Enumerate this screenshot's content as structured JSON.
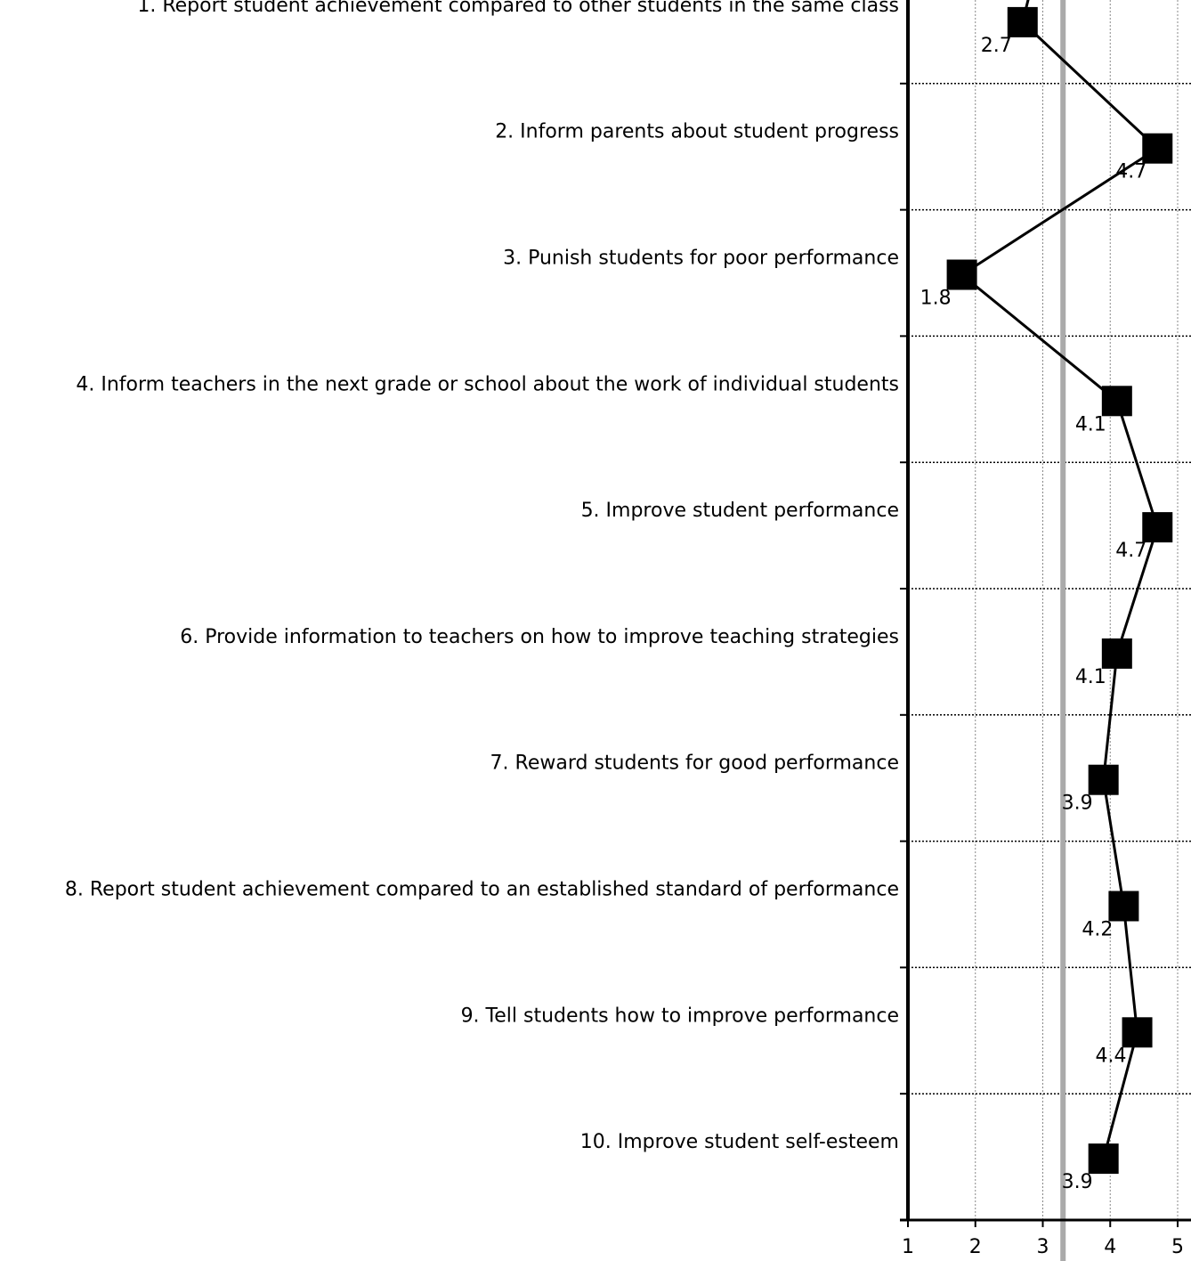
{
  "chart_data": {
    "type": "line",
    "orientation": "horizontal",
    "categories": [
      "1. Report student achievement compared to other students in the same class",
      "2. Inform parents about student progress",
      "3. Punish students for poor performance",
      "4. Inform teachers in the next grade or school about the work of individual students",
      "5. Improve student performance",
      "6. Provide information to teachers on how to improve teaching strategies",
      "7. Reward students for good performance",
      "8. Report student achievement compared to an established standard of performance",
      "9. Tell students how to improve performance",
      "10. Improve student self-esteem"
    ],
    "values": [
      2.7,
      4.7,
      1.8,
      4.1,
      4.7,
      4.1,
      3.9,
      4.2,
      4.4,
      3.9
    ],
    "value_labels": [
      "2.7",
      "4.7",
      "1.8",
      "4.1",
      "4.7",
      "4.1",
      "3.9",
      "4.2",
      "4.4",
      "3.9"
    ],
    "x_ticks": [
      "1",
      "2",
      "3",
      "4",
      "5"
    ],
    "xlim": [
      1,
      5
    ],
    "reference_line": 3.3,
    "marker": "square",
    "grid": true,
    "colors": {
      "line": "#000000",
      "marker": "#000000",
      "reference": "#aaaaaa",
      "grid": "#888888"
    }
  }
}
